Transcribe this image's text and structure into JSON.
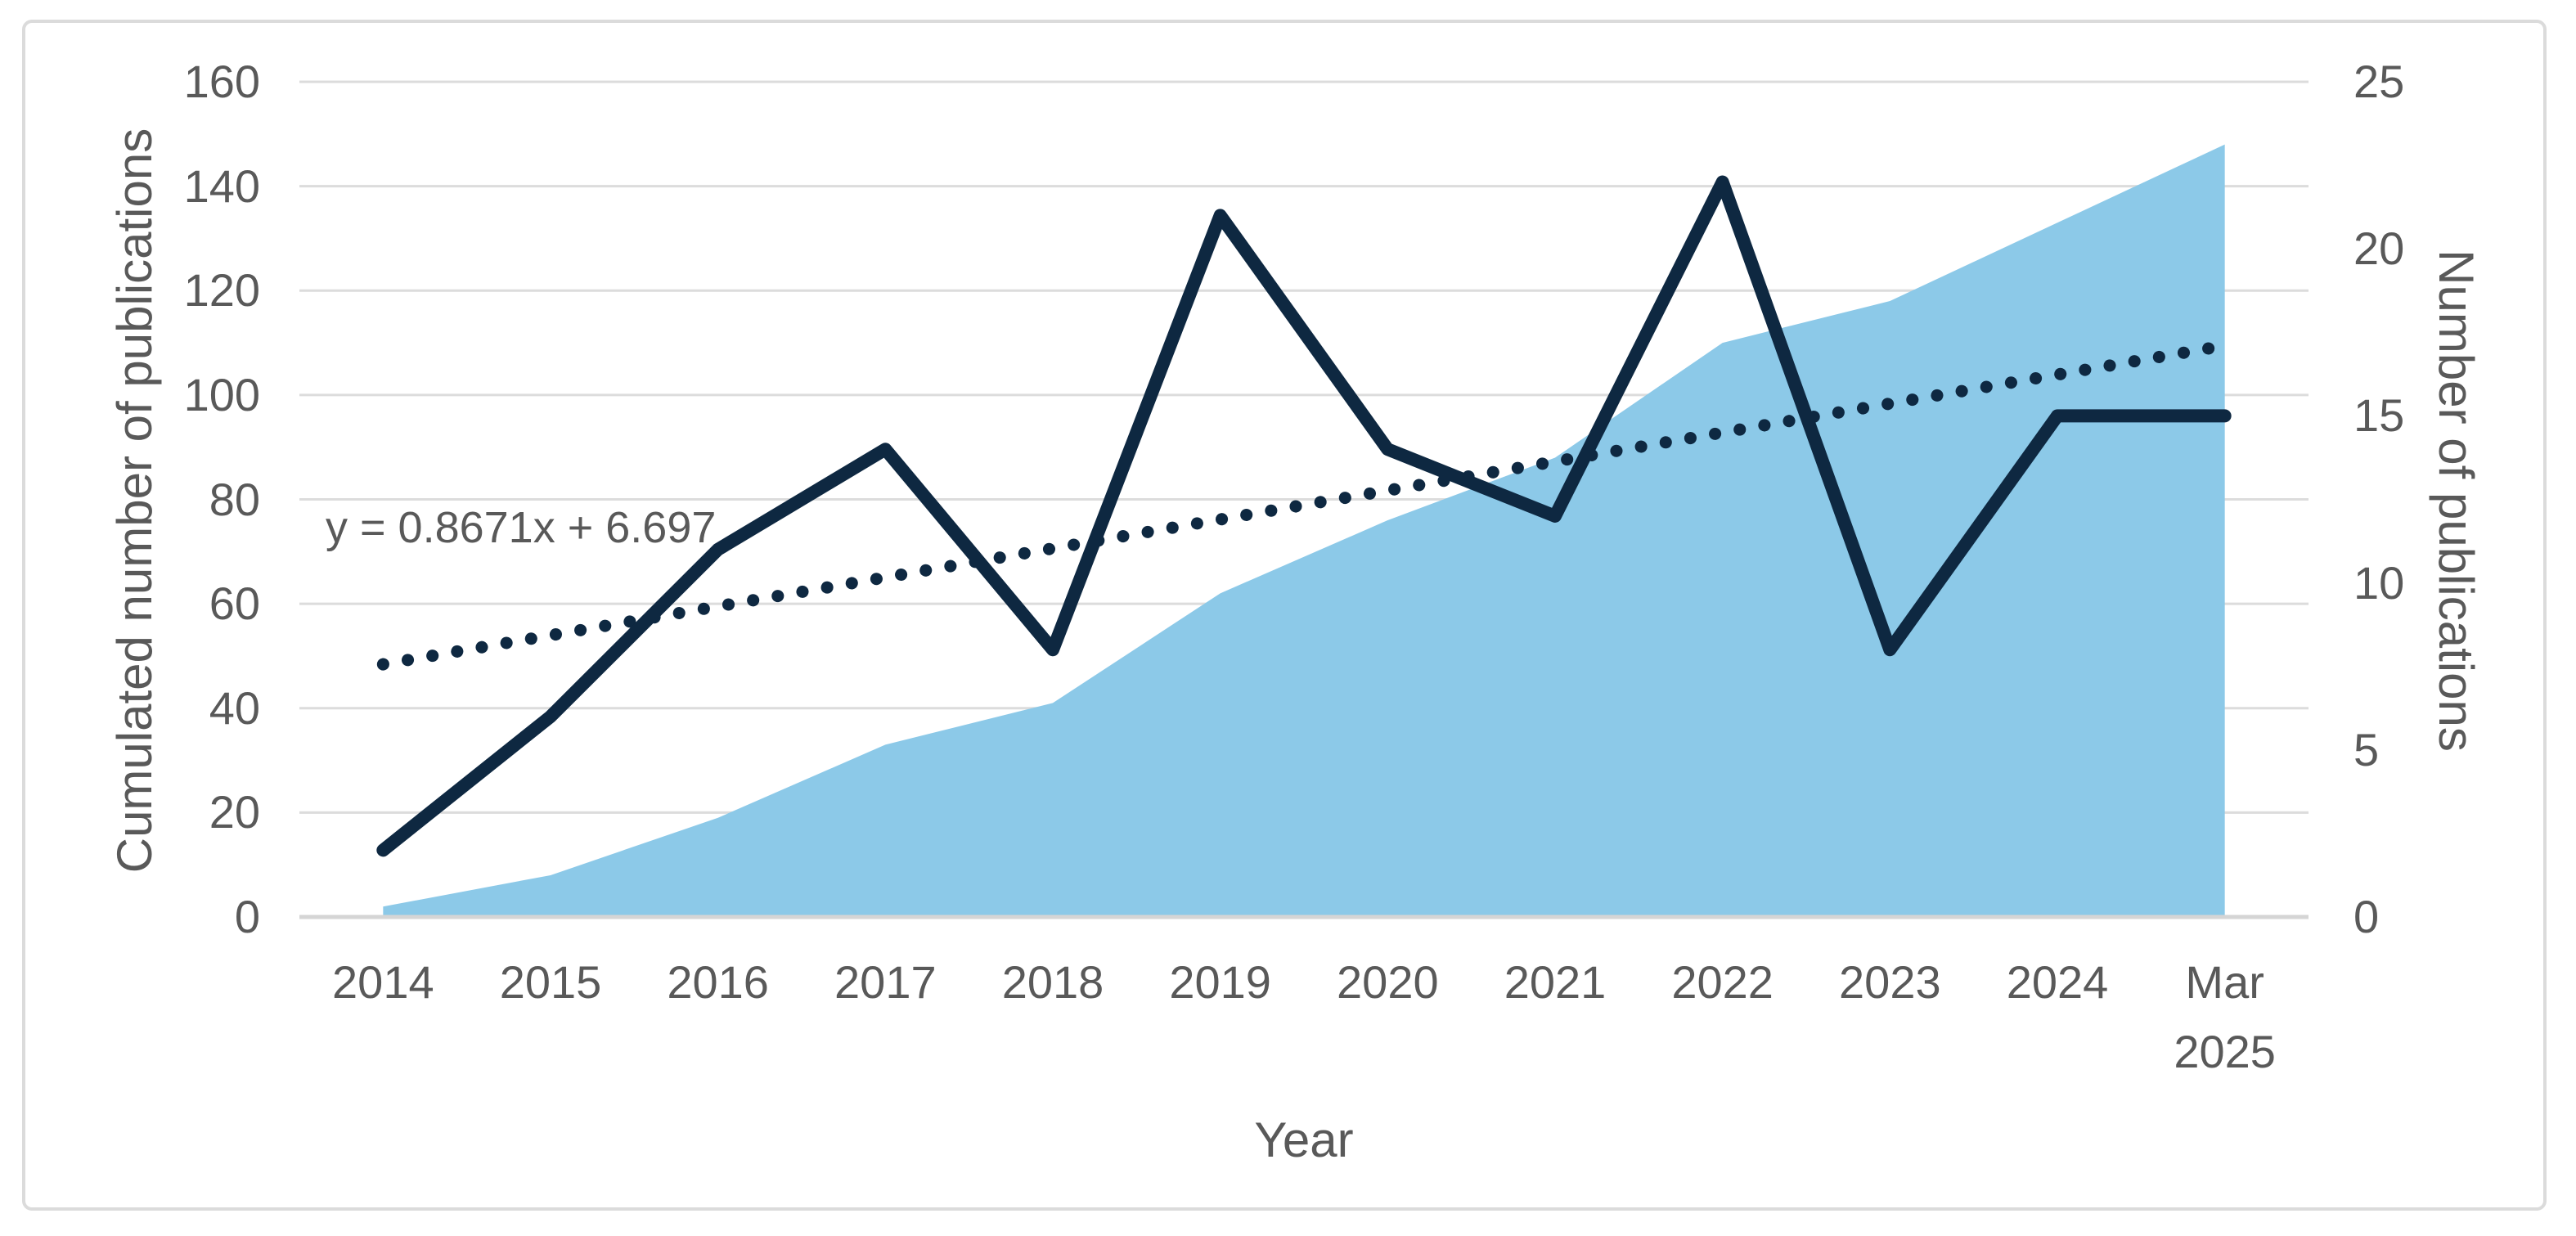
{
  "chart_data": {
    "type": "combo-area-line",
    "categories": [
      "2014",
      "2015",
      "2016",
      "2017",
      "2018",
      "2019",
      "2020",
      "2021",
      "2022",
      "2023",
      "2024",
      "Mar 2025"
    ],
    "x_axis": {
      "title": "Year"
    },
    "left_axis": {
      "title": "Cumulated number of publications",
      "min": 0,
      "max": 160,
      "step": 20,
      "tick_labels": [
        "0",
        "20",
        "40",
        "60",
        "80",
        "100",
        "120",
        "140",
        "160"
      ]
    },
    "right_axis": {
      "title": "Number of publications",
      "min": 0,
      "max": 25,
      "step": 5,
      "tick_labels": [
        "0",
        "5",
        "10",
        "15",
        "20",
        "25"
      ]
    },
    "series": [
      {
        "name": "Cumulated number of publications",
        "type": "area",
        "axis": "left",
        "color": "#8CC9E8",
        "values": [
          2,
          8,
          19,
          33,
          41,
          62,
          76,
          88,
          110,
          118,
          133,
          148
        ]
      },
      {
        "name": "Number of publications",
        "type": "line",
        "axis": "right",
        "color": "#0E2841",
        "values": [
          2,
          6,
          11,
          14,
          8,
          21,
          14,
          12,
          22,
          8,
          15,
          15
        ]
      }
    ],
    "trendline": {
      "label": "y = 0.8671x + 6.697",
      "slope": 0.8671,
      "intercept": 6.697,
      "axis": "right",
      "style": "dotted",
      "color": "#0E2841"
    },
    "grid": true,
    "legend": "none",
    "colors": {
      "background": "#FFFFFF",
      "frame_border": "#DBDBDB",
      "gridline": "#DCDCDC",
      "axis_line": "#D5D5D5",
      "text": "#595959"
    }
  }
}
